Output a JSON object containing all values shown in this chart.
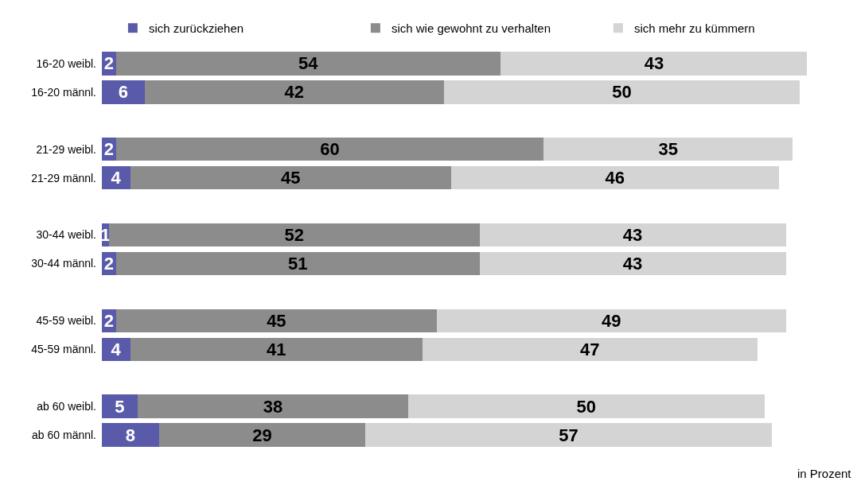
{
  "chart_data": {
    "type": "bar",
    "orientation": "horizontal",
    "stacked": true,
    "data_labels": true,
    "legend": "top",
    "categories": [
      "16-20 weibl.",
      "16-20 männl.",
      null,
      "21-29 weibl.",
      "21-29 männl.",
      null,
      "30-44 weibl.",
      "30-44 männl.",
      null,
      "45-59 weibl.",
      "45-59 männl.",
      null,
      "ab 60 weibl.",
      "ab 60 männl."
    ],
    "series": [
      {
        "name": "sich zurückziehen",
        "color": "#5a5aaa",
        "values": [
          2,
          6,
          null,
          2,
          4,
          null,
          1,
          2,
          null,
          2,
          4,
          null,
          5,
          8
        ]
      },
      {
        "name": "sich wie gewohnt zu verhalten",
        "color": "#8c8c8c",
        "values": [
          54,
          42,
          null,
          60,
          45,
          null,
          52,
          51,
          null,
          45,
          41,
          null,
          38,
          29
        ]
      },
      {
        "name": "sich mehr zu kümmern",
        "color": "#d4d4d4",
        "values": [
          43,
          50,
          null,
          35,
          46,
          null,
          43,
          43,
          null,
          49,
          47,
          null,
          50,
          57
        ]
      }
    ],
    "annotations": [
      "in Prozent"
    ]
  }
}
